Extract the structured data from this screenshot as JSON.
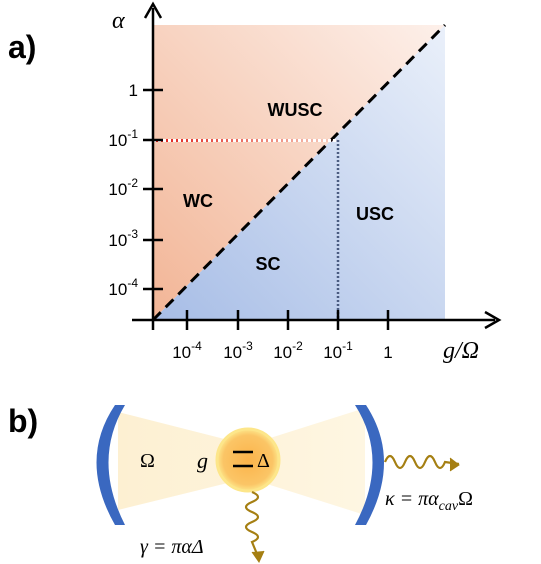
{
  "panel_a": {
    "label": "a)",
    "y_axis_label": "α",
    "x_axis_label": "g/Ω",
    "y_ticks": [
      {
        "base": "1"
      },
      {
        "base": "10",
        "exp": "-1"
      },
      {
        "base": "10",
        "exp": "-2"
      },
      {
        "base": "10",
        "exp": "-3"
      },
      {
        "base": "10",
        "exp": "-4"
      }
    ],
    "x_ticks": [
      {
        "base": "10",
        "exp": "-4"
      },
      {
        "base": "10",
        "exp": "-3"
      },
      {
        "base": "10",
        "exp": "-2"
      },
      {
        "base": "10",
        "exp": "-1"
      },
      {
        "base": "1"
      }
    ],
    "regions": [
      "WUSC",
      "WC",
      "SC",
      "USC"
    ]
  },
  "panel_b": {
    "label": "b)",
    "cavity": "Ω",
    "coupling": "g",
    "atom": "Δ",
    "cavity_loss": "κ = πα",
    "cavity_loss_sub": "cav",
    "cavity_loss_end": "Ω",
    "atom_loss": "γ = παΔ"
  }
}
